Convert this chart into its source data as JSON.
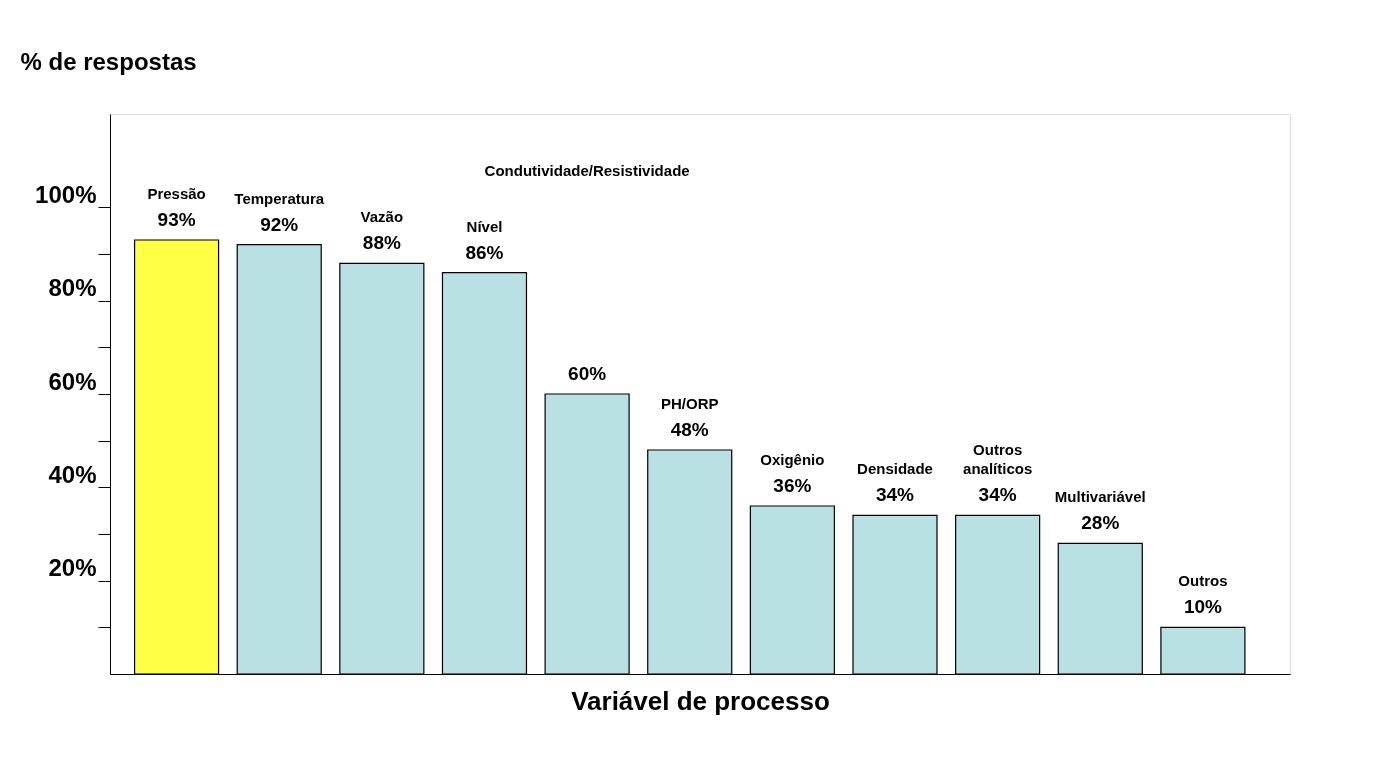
{
  "chart_data": {
    "type": "bar",
    "xlabel": "Variável de processo",
    "ylabel": "% de respostas",
    "categories": [
      "Pressão",
      "Temperatura",
      "Vazão",
      "Nível",
      "Condutividade/Resistividade",
      "PH/ORP",
      "Oxigênio",
      "Densidade",
      "Outros analíticos",
      "Multivariável",
      "Outros"
    ],
    "values": [
      93,
      92,
      88,
      86,
      60,
      48,
      36,
      34,
      34,
      28,
      10
    ],
    "value_labels": [
      "93%",
      "92%",
      "88%",
      "86%",
      "60%",
      "48%",
      "36%",
      "34%",
      "34%",
      "28%",
      "10%"
    ],
    "colors": [
      "#ffff44",
      "#b9e1e4",
      "#b9e1e4",
      "#b9e1e4",
      "#b9e1e4",
      "#b9e1e4",
      "#b9e1e4",
      "#b9e1e4",
      "#b9e1e4",
      "#b9e1e4",
      "#b9e1e4"
    ],
    "ylim": [
      0,
      120
    ],
    "yticks": [
      {
        "value": 10,
        "label": null
      },
      {
        "value": 20,
        "label": "20%"
      },
      {
        "value": 30,
        "label": null
      },
      {
        "value": 40,
        "label": "40%"
      },
      {
        "value": 50,
        "label": null
      },
      {
        "value": 60,
        "label": "60%"
      },
      {
        "value": 70,
        "label": null
      },
      {
        "value": 80,
        "label": "80%"
      },
      {
        "value": 90,
        "label": null
      },
      {
        "value": 100,
        "label": "100%"
      }
    ],
    "grid": false
  }
}
